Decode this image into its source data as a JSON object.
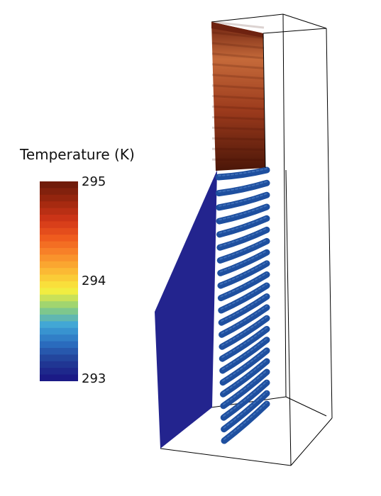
{
  "legend": {
    "title": "Temperature (K)",
    "max_label": "295",
    "mid_label": "294",
    "min_label": "293",
    "colors": [
      "#701c0b",
      "#a0280f",
      "#d03518",
      "#ef5a1e",
      "#f98a2a",
      "#fbbc35",
      "#f8ef3d",
      "#8fcf79",
      "#3fa6d8",
      "#2b70c1",
      "#223f97",
      "#1b1a86"
    ]
  },
  "scene": {
    "hot_color_top": "#6e2210",
    "hot_color_mid": "#b5532d",
    "hot_color_bottom": "#4b1608",
    "wall_color": "#23248e",
    "tube_color": "#1e4f9f",
    "tube_rows": 22
  }
}
